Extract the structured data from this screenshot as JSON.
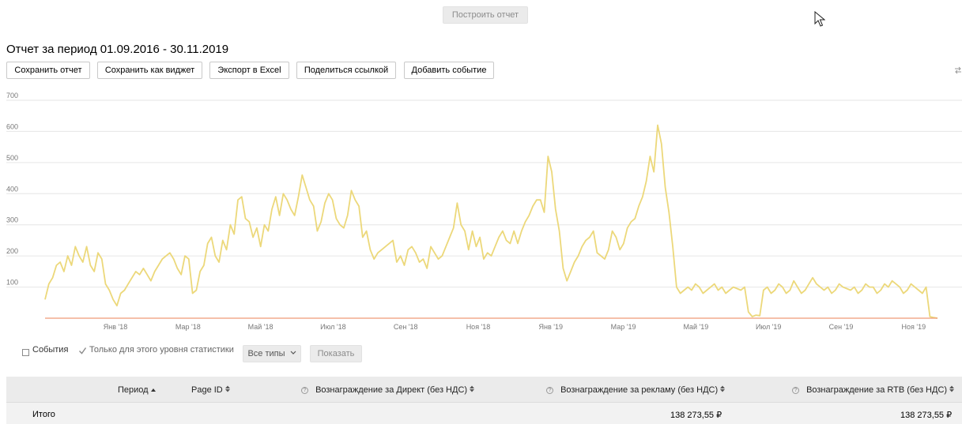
{
  "toolbar_top": {
    "build_report_label": "Построить отчет"
  },
  "report": {
    "title": "Отчет за период 01.09.2016 - 30.11.2019",
    "buttons": {
      "save_report": "Сохранить отчет",
      "save_as_widget": "Сохранить как виджет",
      "export_excel": "Экспорт в Excel",
      "share_link": "Поделиться ссылкой",
      "add_event": "Добавить событие"
    }
  },
  "colors": {
    "series": "#ecd87a",
    "baseline": "#ef9a78",
    "grid": "#e6e6e6"
  },
  "chart_data": {
    "type": "line",
    "ylim": [
      0,
      700
    ],
    "yticks": [
      0,
      100,
      200,
      300,
      400,
      500,
      600,
      700
    ],
    "ytick_labels": [
      "",
      "100",
      "200",
      "300",
      "400",
      "500",
      "600",
      "700"
    ],
    "xticks": [
      "Янв '18",
      "Мар '18",
      "Май '18",
      "Июл '18",
      "Сен '18",
      "Ноя '18",
      "Янв '19",
      "Мар '19",
      "Май '19",
      "Июл '19",
      "Сен '19",
      "Ноя '19"
    ],
    "grid": true,
    "legend": "none",
    "series": [
      {
        "values": [
          60,
          110,
          130,
          170,
          180,
          150,
          200,
          170,
          230,
          200,
          180,
          230,
          170,
          150,
          210,
          190,
          110,
          90,
          60,
          40,
          80,
          90,
          110,
          130,
          150,
          140,
          160,
          140,
          120,
          150,
          170,
          190,
          200,
          210,
          190,
          160,
          140,
          200,
          190,
          80,
          90,
          150,
          170,
          240,
          260,
          200,
          180,
          250,
          220,
          300,
          270,
          380,
          390,
          320,
          310,
          260,
          290,
          230,
          300,
          280,
          350,
          390,
          330,
          400,
          380,
          350,
          330,
          390,
          460,
          420,
          380,
          360,
          280,
          310,
          370,
          400,
          380,
          320,
          300,
          290,
          330,
          410,
          380,
          360,
          260,
          280,
          220,
          190,
          210,
          220,
          230,
          240,
          250,
          180,
          200,
          170,
          220,
          230,
          210,
          180,
          190,
          160,
          230,
          210,
          190,
          200,
          230,
          260,
          290,
          370,
          300,
          280,
          220,
          280,
          230,
          260,
          190,
          210,
          200,
          230,
          260,
          280,
          250,
          240,
          280,
          240,
          280,
          310,
          330,
          360,
          380,
          380,
          340,
          520,
          470,
          350,
          280,
          160,
          120,
          150,
          180,
          200,
          230,
          250,
          260,
          280,
          210,
          200,
          190,
          220,
          280,
          260,
          220,
          240,
          290,
          310,
          320,
          360,
          390,
          440,
          520,
          470,
          620,
          560,
          420,
          340,
          230,
          100,
          80,
          90,
          100,
          90,
          110,
          100,
          80,
          90,
          100,
          110,
          90,
          100,
          80,
          90,
          100,
          95,
          90,
          100,
          20,
          5,
          10,
          8,
          90,
          100,
          80,
          90,
          110,
          100,
          80,
          90,
          120,
          100,
          80,
          90,
          110,
          130,
          110,
          100,
          90,
          100,
          80,
          90,
          110,
          100,
          95,
          90,
          100,
          80,
          90,
          110,
          100,
          100,
          80,
          90,
          110,
          100,
          120,
          110,
          100,
          80,
          90,
          110,
          100,
          90,
          80,
          100,
          5,
          2,
          0
        ],
        "color_key": "series"
      },
      {
        "values": [
          0,
          0
        ],
        "color_key": "baseline"
      }
    ]
  },
  "filters": {
    "events_label": "События",
    "only_level_label": "Только для этого уровня статистики",
    "all_types_label": "Все типы",
    "show_label": "Показать"
  },
  "table": {
    "columns": {
      "period": "Период",
      "page_id": "Page ID",
      "direct_reward": "Вознаграждение за Директ (без НДС)",
      "ad_reward": "Вознаграждение за рекламу (без НДС)",
      "rtb_reward": "Вознаграждение за RTB (без НДС)"
    },
    "total_row": {
      "label": "Итого",
      "ad_reward": "138 273,55 ₽",
      "rtb_reward": "138 273,55 ₽"
    }
  }
}
